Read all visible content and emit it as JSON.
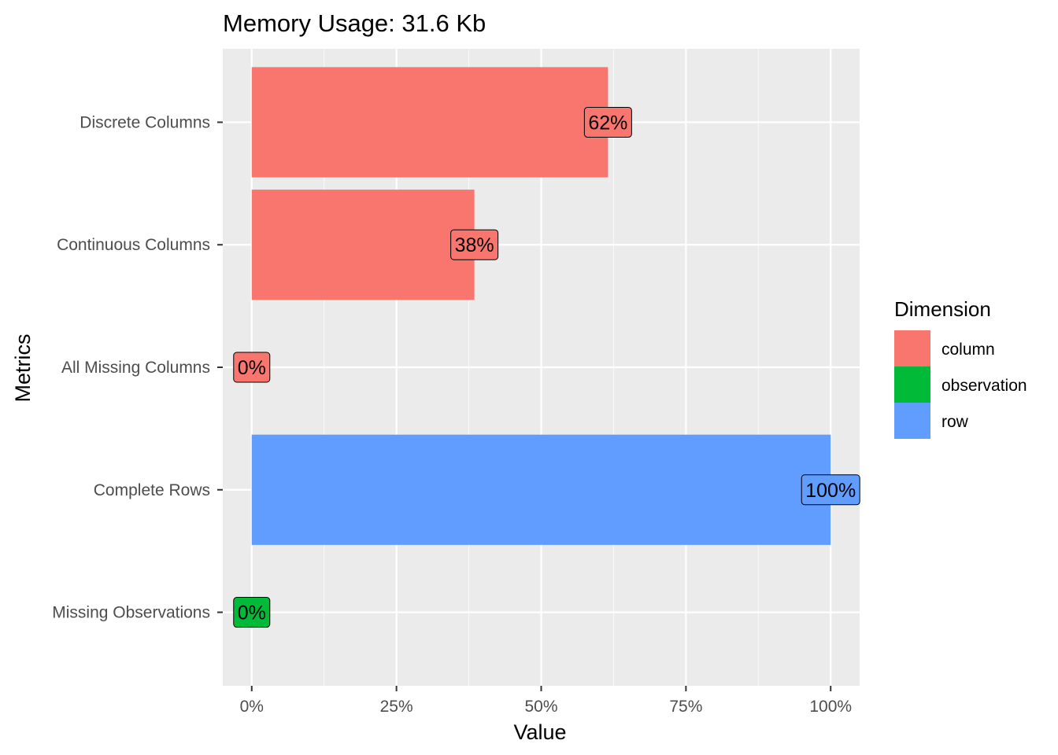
{
  "chart_data": {
    "type": "bar",
    "orientation": "horizontal",
    "title": "Memory Usage: 31.6 Kb",
    "xlabel": "Value",
    "ylabel": "Metrics",
    "xlim": [
      -0.05,
      1.05
    ],
    "x_ticks": [
      0,
      0.25,
      0.5,
      0.75,
      1
    ],
    "x_tick_labels": [
      "0%",
      "25%",
      "50%",
      "75%",
      "100%"
    ],
    "grid": true,
    "legend": {
      "title": "Dimension",
      "position": "right",
      "entries": [
        {
          "name": "column",
          "color": "#F8766D"
        },
        {
          "name": "observation",
          "color": "#00BA38"
        },
        {
          "name": "row",
          "color": "#619CFF"
        }
      ]
    },
    "categories": [
      "Discrete Columns",
      "Continuous Columns",
      "All Missing Columns",
      "Complete Rows",
      "Missing Observations"
    ],
    "values": [
      0.6154,
      0.3846,
      0,
      1,
      0
    ],
    "dimensions": [
      "column",
      "column",
      "column",
      "row",
      "observation"
    ],
    "labels": [
      "62%",
      "38%",
      "0%",
      "100%",
      "0%"
    ]
  }
}
